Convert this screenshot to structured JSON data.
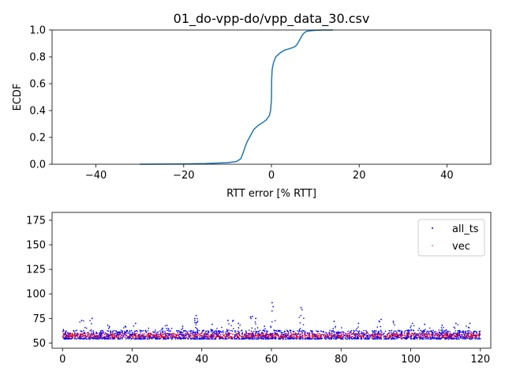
{
  "chart_data": [
    {
      "type": "line",
      "title": "01_do-vpp-do/vpp_data_30.csv",
      "xlabel": "RTT error [% RTT]",
      "ylabel": "ECDF",
      "xlim": [
        -50,
        50
      ],
      "ylim": [
        0.0,
        1.0
      ],
      "xticks": [
        -40,
        -20,
        0,
        20,
        40
      ],
      "xtick_labels": [
        "−40",
        "−20",
        "0",
        "20",
        "40"
      ],
      "yticks": [
        0.0,
        0.2,
        0.4,
        0.6,
        0.8,
        1.0
      ],
      "ytick_labels": [
        "0.0",
        "0.2",
        "0.4",
        "0.6",
        "0.8",
        "1.0"
      ],
      "grid": false,
      "line_color": "#1f77b4",
      "series": [
        {
          "x": [
            -30,
            -20,
            -15,
            -10,
            -8,
            -7,
            -6.5,
            -6,
            -5.5,
            -5,
            -4.5,
            -4,
            -3,
            -2,
            -1.2,
            -0.5,
            -0.2,
            0,
            0.05,
            0.15,
            0.3,
            0.5,
            1,
            2,
            3,
            4,
            5,
            5.5,
            6,
            6.5,
            7,
            7.5,
            8,
            9,
            10,
            12,
            14
          ],
          "y": [
            0.0,
            0.002,
            0.005,
            0.012,
            0.02,
            0.04,
            0.08,
            0.13,
            0.17,
            0.2,
            0.23,
            0.26,
            0.29,
            0.31,
            0.33,
            0.36,
            0.4,
            0.48,
            0.63,
            0.7,
            0.73,
            0.76,
            0.8,
            0.83,
            0.85,
            0.86,
            0.87,
            0.88,
            0.9,
            0.93,
            0.96,
            0.98,
            0.99,
            0.995,
            0.998,
            1.0,
            1.0
          ]
        }
      ]
    },
    {
      "type": "scatter",
      "title": "",
      "xlabel": "",
      "ylabel": "",
      "xlim": [
        -3,
        123
      ],
      "ylim": [
        44.7,
        183
      ],
      "xticks": [
        0,
        20,
        40,
        60,
        80,
        100,
        120
      ],
      "xtick_labels": [
        "0",
        "20",
        "40",
        "60",
        "80",
        "100",
        "120"
      ],
      "yticks": [
        50,
        75,
        100,
        125,
        150,
        175
      ],
      "ytick_labels": [
        "50",
        "75",
        "100",
        "125",
        "150",
        "175"
      ],
      "grid": false,
      "legend_position": "top-right",
      "series": [
        {
          "name": "all_ts",
          "color": "#0000ff",
          "x_range": [
            0,
            120
          ],
          "baseline_range": [
            54,
            63
          ],
          "spikes": [
            {
              "x": 5.5,
              "y": 73
            },
            {
              "x": 8.5,
              "y": 75
            },
            {
              "x": 13,
              "y": 68
            },
            {
              "x": 18,
              "y": 67
            },
            {
              "x": 21,
              "y": 70
            },
            {
              "x": 30,
              "y": 68
            },
            {
              "x": 34.5,
              "y": 67
            },
            {
              "x": 38,
              "y": 75
            },
            {
              "x": 38.4,
              "y": 78
            },
            {
              "x": 38.8,
              "y": 72
            },
            {
              "x": 43,
              "y": 69
            },
            {
              "x": 47.5,
              "y": 73
            },
            {
              "x": 49,
              "y": 73
            },
            {
              "x": 50.5,
              "y": 70
            },
            {
              "x": 54.5,
              "y": 77
            },
            {
              "x": 55.5,
              "y": 75
            },
            {
              "x": 58,
              "y": 67
            },
            {
              "x": 60.2,
              "y": 91
            },
            {
              "x": 60.5,
              "y": 87
            },
            {
              "x": 68.5,
              "y": 86
            },
            {
              "x": 68.8,
              "y": 84
            },
            {
              "x": 78,
              "y": 72
            },
            {
              "x": 85,
              "y": 70
            },
            {
              "x": 91.5,
              "y": 74
            },
            {
              "x": 95,
              "y": 72
            },
            {
              "x": 104,
              "y": 69
            },
            {
              "x": 109,
              "y": 68
            },
            {
              "x": 113,
              "y": 70
            },
            {
              "x": 117,
              "y": 70
            },
            {
              "x": 100.5,
              "y": 70
            }
          ]
        },
        {
          "name": "vec",
          "color": "#ff0000",
          "x_range": [
            0,
            120
          ],
          "baseline_range": [
            55,
            60
          ]
        }
      ]
    }
  ]
}
